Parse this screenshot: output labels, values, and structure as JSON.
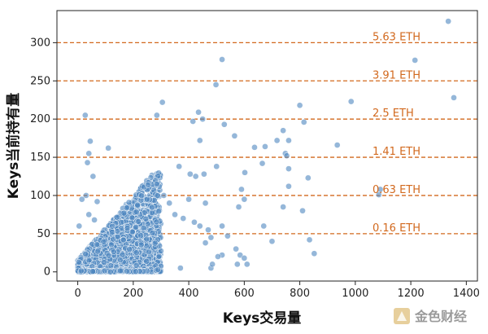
{
  "chart_data": {
    "type": "scatter",
    "xlabel": "Keys交易量",
    "ylabel": "Keys当前持有量",
    "xlim": [
      -75,
      1440
    ],
    "ylim": [
      -12,
      342
    ],
    "x_ticks": [
      0,
      200,
      400,
      600,
      800,
      1000,
      1200,
      1400
    ],
    "y_ticks": [
      0,
      50,
      100,
      150,
      200,
      250,
      300
    ],
    "grid": false,
    "point_color": "#4f87c0",
    "reference_line_color": "#d2691e",
    "reference_lines": [
      {
        "y": 50,
        "label": "0.16 ETH"
      },
      {
        "y": 100,
        "label": "0.63 ETH"
      },
      {
        "y": 150,
        "label": "1.41 ETH"
      },
      {
        "y": 200,
        "label": "2.5 ETH"
      },
      {
        "y": 250,
        "label": "3.91 ETH"
      },
      {
        "y": 300,
        "label": "5.63 ETH"
      }
    ],
    "dense_cluster": {
      "description_of_shape": "wedge",
      "x_range": [
        0,
        300
      ],
      "y_range": [
        0,
        130
      ],
      "approx_points": 2600
    },
    "points": [
      [
        1335,
        328
      ],
      [
        520,
        278
      ],
      [
        1215,
        277
      ],
      [
        498,
        245
      ],
      [
        1355,
        228
      ],
      [
        305,
        222
      ],
      [
        985,
        223
      ],
      [
        435,
        209
      ],
      [
        800,
        218
      ],
      [
        27,
        205
      ],
      [
        450,
        200
      ],
      [
        285,
        205
      ],
      [
        415,
        197
      ],
      [
        528,
        193
      ],
      [
        815,
        196
      ],
      [
        565,
        178
      ],
      [
        440,
        172
      ],
      [
        45,
        171
      ],
      [
        760,
        172
      ],
      [
        718,
        172
      ],
      [
        740,
        185
      ],
      [
        935,
        166
      ],
      [
        637,
        163
      ],
      [
        675,
        164
      ],
      [
        110,
        162
      ],
      [
        40,
        155
      ],
      [
        748,
        155
      ],
      [
        753,
        152
      ],
      [
        35,
        143
      ],
      [
        665,
        142
      ],
      [
        500,
        138
      ],
      [
        760,
        135
      ],
      [
        365,
        138
      ],
      [
        55,
        125
      ],
      [
        830,
        123
      ],
      [
        425,
        125
      ],
      [
        455,
        128
      ],
      [
        602,
        130
      ],
      [
        405,
        128
      ],
      [
        1090,
        108
      ],
      [
        1085,
        101
      ],
      [
        30,
        100
      ],
      [
        760,
        112
      ],
      [
        740,
        85
      ],
      [
        810,
        80
      ],
      [
        670,
        60
      ],
      [
        700,
        40
      ],
      [
        835,
        42
      ],
      [
        852,
        24
      ],
      [
        570,
        30
      ],
      [
        585,
        22
      ],
      [
        480,
        5
      ],
      [
        370,
        5
      ],
      [
        575,
        10
      ],
      [
        485,
        10
      ],
      [
        610,
        10
      ],
      [
        600,
        18
      ],
      [
        520,
        60
      ],
      [
        540,
        47
      ],
      [
        520,
        22
      ],
      [
        505,
        20
      ],
      [
        60,
        68
      ],
      [
        40,
        75
      ],
      [
        5,
        60
      ],
      [
        15,
        95
      ],
      [
        70,
        92
      ],
      [
        590,
        108
      ],
      [
        600,
        95
      ],
      [
        580,
        85
      ],
      [
        460,
        90
      ],
      [
        400,
        95
      ],
      [
        250,
        95
      ],
      [
        310,
        100
      ],
      [
        330,
        90
      ],
      [
        350,
        75
      ],
      [
        380,
        70
      ],
      [
        420,
        65
      ],
      [
        440,
        60
      ],
      [
        470,
        55
      ],
      [
        480,
        45
      ],
      [
        460,
        38
      ]
    ]
  },
  "watermark": {
    "text": "金色财经"
  }
}
